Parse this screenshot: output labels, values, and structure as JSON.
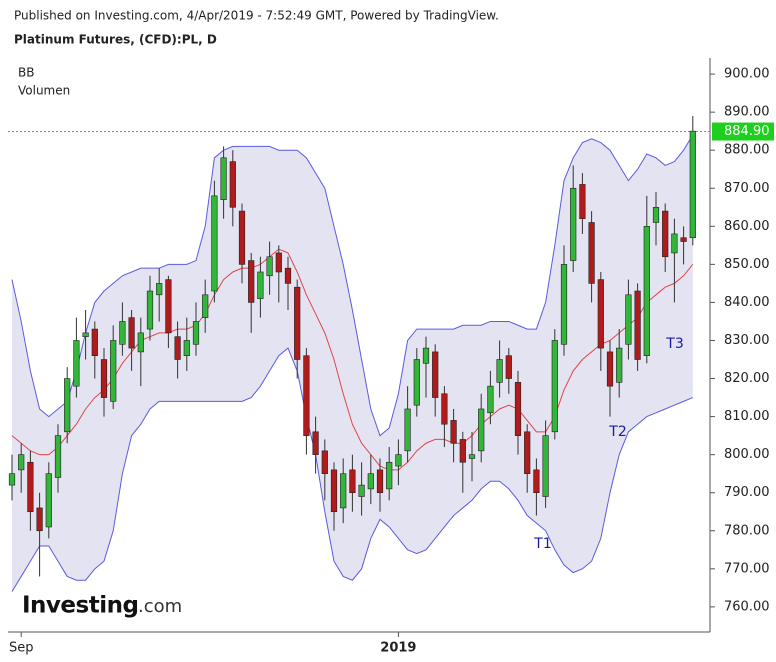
{
  "header": {
    "published": "Published on Investing.com, 4/Apr/2019 - 7:52:49 GMT, Powered by TradingView.",
    "symbol": "Platinum Futures, (CFD):PL, D"
  },
  "logo": {
    "brand": "Investing",
    "suffix": ".com"
  },
  "chart_data": {
    "type": "candlestick",
    "legend": [
      "BB",
      "Volumen"
    ],
    "categories": [
      null,
      "Sep",
      null,
      null,
      null,
      null,
      null,
      null,
      null,
      null,
      null,
      null,
      null,
      null,
      null,
      null,
      null,
      null,
      null,
      null,
      null,
      null,
      null,
      null,
      null,
      null,
      null,
      null,
      null,
      null,
      null,
      null,
      null,
      null,
      null,
      null,
      null,
      null,
      null,
      null,
      null,
      null,
      "2019",
      null,
      null,
      null,
      null,
      null,
      null,
      null,
      null,
      null,
      null,
      null,
      null,
      null,
      null,
      null,
      null,
      null,
      null,
      null,
      null,
      null,
      null,
      null,
      null,
      null,
      null,
      null,
      null,
      null,
      null,
      null,
      null
    ],
    "open": [
      792,
      796,
      798,
      786,
      781,
      794,
      806,
      818,
      831,
      833,
      825,
      814,
      829,
      836,
      827,
      833,
      842,
      846,
      831,
      826,
      829,
      836,
      843,
      867,
      877,
      864,
      851,
      841,
      847,
      853,
      849,
      844,
      826,
      806,
      801,
      796,
      786,
      796,
      789,
      791,
      796,
      791,
      797,
      801,
      813,
      824,
      827,
      816,
      809,
      804,
      799,
      801,
      811,
      819,
      826,
      819,
      806,
      796,
      789,
      806,
      829,
      851,
      871,
      861,
      846,
      827,
      819,
      829,
      843,
      826,
      861,
      864,
      853,
      857,
      857
    ],
    "high": [
      800,
      803,
      801,
      790,
      798,
      808,
      823,
      836,
      838,
      835,
      828,
      834,
      840,
      838,
      836,
      847,
      849,
      847,
      835,
      836,
      840,
      846,
      872,
      881,
      880,
      866,
      853,
      852,
      856,
      855,
      852,
      846,
      828,
      810,
      804,
      798,
      799,
      800,
      798,
      800,
      799,
      802,
      804,
      818,
      828,
      831,
      829,
      818,
      812,
      806,
      806,
      816,
      822,
      830,
      828,
      822,
      808,
      799,
      809,
      833,
      855,
      876,
      874,
      864,
      848,
      830,
      833,
      846,
      845,
      868,
      869,
      866,
      862,
      860,
      889
    ],
    "low": [
      788,
      790,
      780,
      768,
      778,
      790,
      803,
      815,
      825,
      820,
      810,
      812,
      826,
      822,
      818,
      830,
      835,
      828,
      820,
      822,
      826,
      832,
      840,
      862,
      860,
      845,
      832,
      836,
      842,
      840,
      838,
      820,
      800,
      795,
      788,
      780,
      782,
      785,
      784,
      787,
      785,
      788,
      792,
      798,
      810,
      815,
      810,
      802,
      798,
      790,
      793,
      798,
      808,
      815,
      816,
      800,
      790,
      784,
      786,
      804,
      826,
      848,
      858,
      840,
      822,
      810,
      815,
      825,
      822,
      824,
      855,
      848,
      840,
      850,
      855
    ],
    "close": [
      795,
      800,
      785,
      780,
      795,
      805,
      820,
      830,
      832,
      826,
      815,
      830,
      835,
      828,
      832,
      843,
      845,
      832,
      825,
      830,
      835,
      842,
      868,
      878,
      865,
      850,
      840,
      848,
      852,
      848,
      845,
      825,
      805,
      800,
      795,
      785,
      795,
      790,
      792,
      795,
      790,
      798,
      800,
      812,
      825,
      828,
      815,
      808,
      803,
      798,
      800,
      812,
      818,
      825,
      820,
      805,
      795,
      790,
      805,
      830,
      850,
      870,
      862,
      845,
      828,
      818,
      828,
      842,
      825,
      860,
      865,
      852,
      858,
      856,
      885
    ],
    "upper_band": [
      846,
      835,
      822,
      812,
      810,
      812,
      814,
      822,
      832,
      840,
      843,
      845,
      847,
      848,
      849,
      849,
      849,
      850,
      850,
      850,
      851,
      860,
      878,
      880,
      881,
      881,
      881,
      881,
      881,
      880,
      880,
      880,
      878,
      874,
      870,
      860,
      850,
      838,
      825,
      812,
      805,
      807,
      816,
      830,
      833,
      833,
      833,
      833,
      833,
      834,
      834,
      834,
      835,
      835,
      835,
      834,
      833,
      833,
      840,
      855,
      872,
      878,
      882,
      883,
      882,
      880,
      876,
      872,
      875,
      879,
      878,
      876,
      877,
      880,
      884
    ],
    "middle_band": [
      805,
      803,
      801,
      800,
      800,
      802,
      805,
      808,
      812,
      815,
      817,
      820,
      824,
      827,
      830,
      831,
      832,
      832,
      833,
      833,
      834,
      837,
      842,
      846,
      848,
      849,
      849,
      850,
      852,
      854,
      853,
      848,
      842,
      837,
      832,
      825,
      816,
      808,
      803,
      800,
      797,
      796,
      796,
      798,
      801,
      803,
      804,
      804,
      803,
      803,
      805,
      808,
      810,
      812,
      813,
      812,
      809,
      806,
      806,
      810,
      817,
      822,
      825,
      827,
      829,
      830,
      832,
      834,
      836,
      840,
      842,
      844,
      845,
      847,
      850
    ],
    "lower_band": [
      764,
      768,
      772,
      776,
      776,
      772,
      768,
      767,
      767,
      770,
      772,
      780,
      795,
      805,
      808,
      812,
      814,
      814,
      814,
      814,
      814,
      814,
      814,
      814,
      814,
      814,
      815,
      818,
      822,
      826,
      828,
      822,
      810,
      800,
      785,
      772,
      768,
      767,
      770,
      778,
      783,
      781,
      778,
      775,
      774,
      775,
      778,
      781,
      784,
      786,
      788,
      791,
      793,
      793,
      791,
      788,
      784,
      782,
      780,
      775,
      771,
      769,
      770,
      772,
      778,
      790,
      800,
      806,
      808,
      810,
      811,
      812,
      813,
      814,
      815
    ],
    "colors": {
      "up": "#33b53a",
      "down": "#b01c1c",
      "band_line": "#5b5be0",
      "band_fill": "#e3e3f2",
      "middle": "#e04646",
      "last_price": "#1ed01e"
    },
    "last_price": {
      "value": 884.9,
      "label": "884.90"
    },
    "annotations": [
      "T1",
      "T2",
      "T3"
    ],
    "ylim": [
      753.4,
      903.7
    ],
    "yticks": [
      {
        "value": 760,
        "label": "760.00"
      },
      {
        "value": 770,
        "label": "770.00"
      },
      {
        "value": 780,
        "label": "780.00"
      },
      {
        "value": 790,
        "label": "790.00"
      },
      {
        "value": 800,
        "label": "800.00"
      },
      {
        "value": 810,
        "label": "810.00"
      },
      {
        "value": 820,
        "label": "820.00"
      },
      {
        "value": 830,
        "label": "830.00"
      },
      {
        "value": 840,
        "label": "840.00"
      },
      {
        "value": 850,
        "label": "850.00"
      },
      {
        "value": 860,
        "label": "860.00"
      },
      {
        "value": 870,
        "label": "870.00"
      },
      {
        "value": 880,
        "label": "880.00"
      },
      {
        "value": 890,
        "label": "890.00"
      },
      {
        "value": 900,
        "label": "900.00"
      }
    ]
  }
}
